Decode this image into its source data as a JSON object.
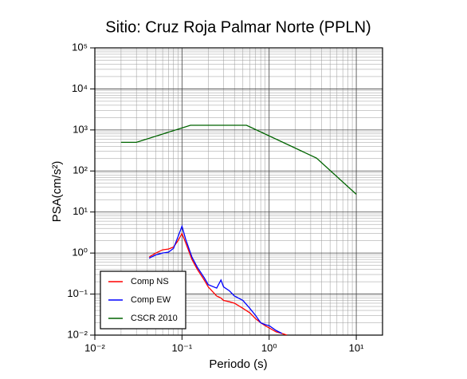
{
  "chart_data": {
    "type": "line",
    "title": "Sitio: Cruz Roja Palmar Norte (PPLN)",
    "x_label": "Periodo (s)",
    "y_label": "PSA(cm/s²)",
    "x_scale": "log",
    "y_scale": "log",
    "grid": true,
    "legend_position": "lower left",
    "xlim": [
      0.01,
      20
    ],
    "ylim": [
      0.01,
      100000
    ],
    "xticks": [
      {
        "value": 0.01,
        "label": "10⁻²"
      },
      {
        "value": 0.1,
        "label": "10⁻¹"
      },
      {
        "value": 1,
        "label": "10⁰"
      },
      {
        "value": 10,
        "label": "10¹"
      }
    ],
    "yticks": [
      {
        "value": 0.01,
        "label": "10⁻²"
      },
      {
        "value": 0.1,
        "label": "10⁻¹"
      },
      {
        "value": 1,
        "label": "10⁰"
      },
      {
        "value": 10,
        "label": "10¹"
      },
      {
        "value": 100,
        "label": "10²"
      },
      {
        "value": 1000,
        "label": "10³"
      },
      {
        "value": 10000,
        "label": "10⁴"
      },
      {
        "value": 100000,
        "label": "10⁵"
      }
    ],
    "x": [
      0.042,
      0.05,
      0.06,
      0.07,
      0.08,
      0.09,
      0.1,
      0.11,
      0.13,
      0.15,
      0.18,
      0.2,
      0.25,
      0.28,
      0.3,
      0.35,
      0.4,
      0.5,
      0.6,
      0.7,
      0.8,
      0.9,
      1.0,
      1.2,
      1.4,
      1.6
    ],
    "series": [
      {
        "name": "Comp NS",
        "color": "#ff0000",
        "values": [
          0.8,
          1.0,
          1.2,
          1.25,
          1.4,
          2.0,
          3.0,
          1.8,
          0.7,
          0.4,
          0.22,
          0.15,
          0.09,
          0.08,
          0.07,
          0.065,
          0.06,
          0.045,
          0.035,
          0.025,
          0.02,
          0.017,
          0.015,
          0.012,
          0.011,
          0.01
        ]
      },
      {
        "name": "Comp EW",
        "color": "#0000ff",
        "values": [
          0.75,
          0.9,
          1.0,
          1.05,
          1.3,
          2.5,
          4.5,
          2.2,
          0.8,
          0.45,
          0.25,
          0.17,
          0.14,
          0.22,
          0.15,
          0.12,
          0.09,
          0.07,
          0.045,
          0.03,
          0.02,
          0.018,
          0.017,
          0.013,
          0.011,
          null
        ]
      },
      {
        "name": "CSCR 2010",
        "color": "#006400",
        "x": [
          0.02,
          0.03,
          0.125,
          0.55,
          3.5,
          10
        ],
        "values": [
          500,
          500,
          1300,
          1300,
          206,
          27
        ]
      }
    ]
  }
}
